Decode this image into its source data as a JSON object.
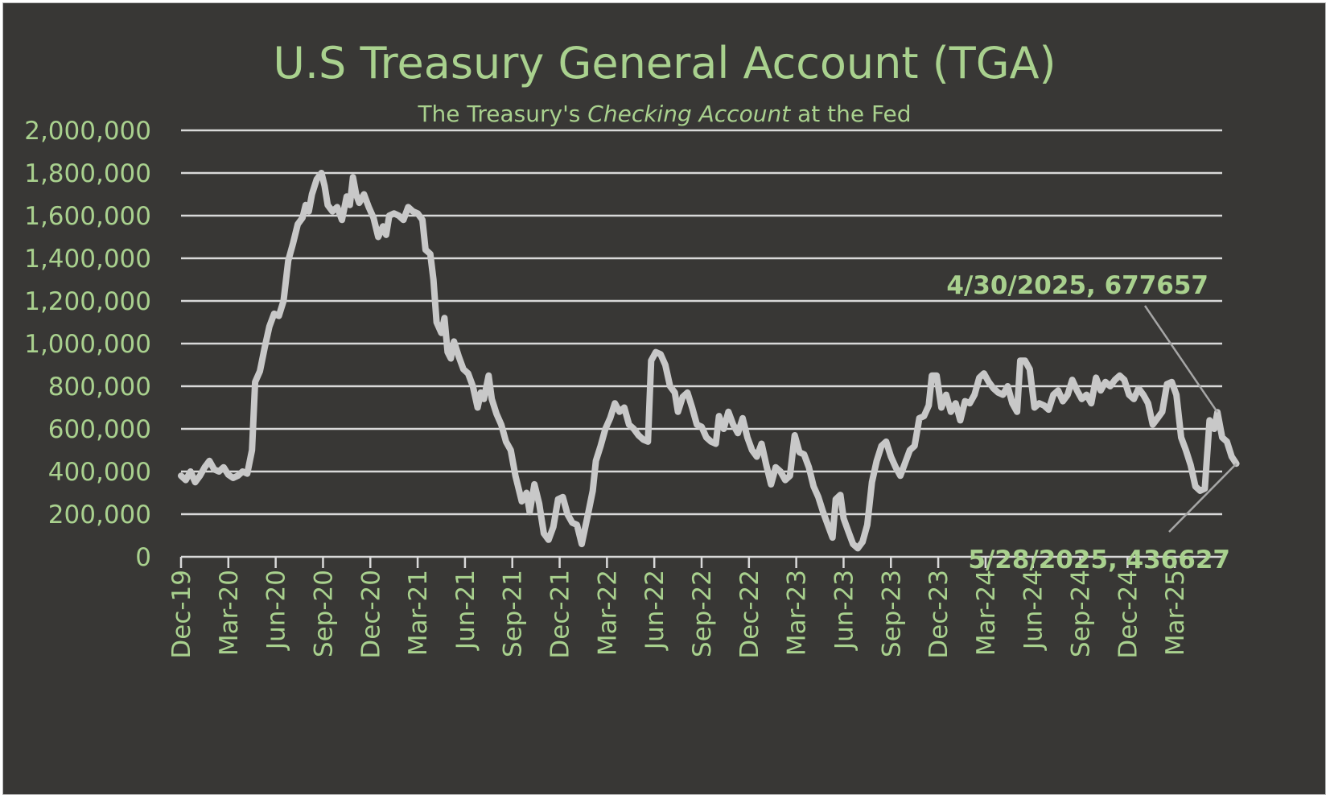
{
  "chart_data": {
    "type": "line",
    "title": "U.S Treasury General Account (TGA)",
    "subtitle_parts": {
      "before": "The Treasury's ",
      "italic": "Checking Account",
      "after": " at the Fed"
    },
    "ylim": [
      0,
      2000000
    ],
    "y_ticks": [
      "0",
      "200,000",
      "400,000",
      "600,000",
      "800,000",
      "1,000,000",
      "1,200,000",
      "1,400,000",
      "1,600,000",
      "1,800,000",
      "2,000,000"
    ],
    "y_tick_values": [
      0,
      200000,
      400000,
      600000,
      800000,
      1000000,
      1200000,
      1400000,
      1600000,
      1800000,
      2000000
    ],
    "x_ticks": [
      "Dec-19",
      "Mar-20",
      "Jun-20",
      "Sep-20",
      "Dec-20",
      "Mar-21",
      "Jun-21",
      "Sep-21",
      "Dec-21",
      "Mar-22",
      "Jun-22",
      "Sep-22",
      "Dec-22",
      "Mar-23",
      "Jun-23",
      "Sep-23",
      "Dec-23",
      "Mar-24",
      "Jun-24",
      "Sep-24",
      "Dec-24",
      "Mar-25"
    ],
    "x_tick_months": [
      0,
      3,
      6,
      9,
      12,
      15,
      18,
      21,
      24,
      27,
      30,
      33,
      36,
      39,
      42,
      45,
      48,
      51,
      54,
      57,
      60,
      63
    ],
    "x_range_months": [
      0,
      66
    ],
    "series": [
      {
        "name": "TGA",
        "points": [
          [
            0.0,
            380000
          ],
          [
            0.3,
            360000
          ],
          [
            0.6,
            400000
          ],
          [
            0.9,
            350000
          ],
          [
            1.2,
            380000
          ],
          [
            1.5,
            420000
          ],
          [
            1.8,
            450000
          ],
          [
            2.1,
            410000
          ],
          [
            2.4,
            400000
          ],
          [
            2.7,
            420000
          ],
          [
            3.0,
            385000
          ],
          [
            3.3,
            370000
          ],
          [
            3.6,
            380000
          ],
          [
            3.9,
            400000
          ],
          [
            4.2,
            390000
          ],
          [
            4.5,
            500000
          ],
          [
            4.7,
            820000
          ],
          [
            5.0,
            870000
          ],
          [
            5.3,
            980000
          ],
          [
            5.6,
            1080000
          ],
          [
            5.9,
            1140000
          ],
          [
            6.2,
            1130000
          ],
          [
            6.5,
            1200000
          ],
          [
            6.8,
            1390000
          ],
          [
            7.1,
            1470000
          ],
          [
            7.4,
            1560000
          ],
          [
            7.7,
            1590000
          ],
          [
            7.9,
            1650000
          ],
          [
            8.1,
            1620000
          ],
          [
            8.3,
            1700000
          ],
          [
            8.6,
            1770000
          ],
          [
            8.9,
            1800000
          ],
          [
            9.1,
            1740000
          ],
          [
            9.3,
            1650000
          ],
          [
            9.6,
            1620000
          ],
          [
            9.9,
            1640000
          ],
          [
            10.2,
            1580000
          ],
          [
            10.5,
            1690000
          ],
          [
            10.7,
            1650000
          ],
          [
            10.9,
            1780000
          ],
          [
            11.1,
            1700000
          ],
          [
            11.3,
            1660000
          ],
          [
            11.6,
            1700000
          ],
          [
            11.9,
            1640000
          ],
          [
            12.2,
            1590000
          ],
          [
            12.5,
            1500000
          ],
          [
            12.8,
            1550000
          ],
          [
            13.0,
            1510000
          ],
          [
            13.2,
            1600000
          ],
          [
            13.5,
            1610000
          ],
          [
            13.8,
            1600000
          ],
          [
            14.1,
            1580000
          ],
          [
            14.4,
            1640000
          ],
          [
            14.7,
            1620000
          ],
          [
            15.0,
            1610000
          ],
          [
            15.3,
            1580000
          ],
          [
            15.5,
            1440000
          ],
          [
            15.8,
            1420000
          ],
          [
            16.0,
            1300000
          ],
          [
            16.2,
            1100000
          ],
          [
            16.5,
            1050000
          ],
          [
            16.7,
            1120000
          ],
          [
            16.9,
            960000
          ],
          [
            17.1,
            930000
          ],
          [
            17.3,
            1010000
          ],
          [
            17.6,
            940000
          ],
          [
            17.9,
            880000
          ],
          [
            18.2,
            860000
          ],
          [
            18.5,
            800000
          ],
          [
            18.8,
            700000
          ],
          [
            19.0,
            770000
          ],
          [
            19.2,
            740000
          ],
          [
            19.5,
            850000
          ],
          [
            19.7,
            740000
          ],
          [
            20.0,
            670000
          ],
          [
            20.3,
            620000
          ],
          [
            20.6,
            540000
          ],
          [
            20.9,
            500000
          ],
          [
            21.2,
            380000
          ],
          [
            21.6,
            260000
          ],
          [
            21.9,
            300000
          ],
          [
            22.1,
            210000
          ],
          [
            22.4,
            340000
          ],
          [
            22.7,
            250000
          ],
          [
            23.0,
            110000
          ],
          [
            23.3,
            80000
          ],
          [
            23.6,
            140000
          ],
          [
            23.9,
            270000
          ],
          [
            24.2,
            280000
          ],
          [
            24.5,
            200000
          ],
          [
            24.8,
            160000
          ],
          [
            25.1,
            150000
          ],
          [
            25.4,
            60000
          ],
          [
            25.8,
            200000
          ],
          [
            26.1,
            310000
          ],
          [
            26.3,
            450000
          ],
          [
            26.6,
            520000
          ],
          [
            26.9,
            600000
          ],
          [
            27.2,
            650000
          ],
          [
            27.5,
            720000
          ],
          [
            27.8,
            680000
          ],
          [
            28.1,
            700000
          ],
          [
            28.4,
            620000
          ],
          [
            28.7,
            600000
          ],
          [
            29.0,
            570000
          ],
          [
            29.3,
            550000
          ],
          [
            29.6,
            540000
          ],
          [
            29.8,
            920000
          ],
          [
            30.1,
            960000
          ],
          [
            30.4,
            950000
          ],
          [
            30.7,
            900000
          ],
          [
            31.0,
            800000
          ],
          [
            31.3,
            770000
          ],
          [
            31.5,
            680000
          ],
          [
            31.8,
            750000
          ],
          [
            32.1,
            770000
          ],
          [
            32.4,
            700000
          ],
          [
            32.7,
            620000
          ],
          [
            33.0,
            610000
          ],
          [
            33.3,
            560000
          ],
          [
            33.6,
            540000
          ],
          [
            33.9,
            530000
          ],
          [
            34.1,
            660000
          ],
          [
            34.4,
            600000
          ],
          [
            34.7,
            680000
          ],
          [
            35.0,
            620000
          ],
          [
            35.3,
            580000
          ],
          [
            35.6,
            650000
          ],
          [
            35.9,
            560000
          ],
          [
            36.2,
            500000
          ],
          [
            36.5,
            470000
          ],
          [
            36.8,
            530000
          ],
          [
            37.1,
            430000
          ],
          [
            37.4,
            340000
          ],
          [
            37.7,
            420000
          ],
          [
            38.0,
            400000
          ],
          [
            38.3,
            360000
          ],
          [
            38.6,
            380000
          ],
          [
            38.9,
            570000
          ],
          [
            39.2,
            490000
          ],
          [
            39.5,
            480000
          ],
          [
            39.8,
            420000
          ],
          [
            40.1,
            330000
          ],
          [
            40.4,
            280000
          ],
          [
            40.7,
            210000
          ],
          [
            41.0,
            150000
          ],
          [
            41.3,
            90000
          ],
          [
            41.5,
            270000
          ],
          [
            41.8,
            290000
          ],
          [
            42.0,
            180000
          ],
          [
            42.3,
            120000
          ],
          [
            42.6,
            60000
          ],
          [
            42.9,
            40000
          ],
          [
            43.2,
            70000
          ],
          [
            43.5,
            150000
          ],
          [
            43.8,
            350000
          ],
          [
            44.1,
            450000
          ],
          [
            44.4,
            520000
          ],
          [
            44.7,
            540000
          ],
          [
            45.0,
            470000
          ],
          [
            45.3,
            420000
          ],
          [
            45.6,
            380000
          ],
          [
            45.9,
            440000
          ],
          [
            46.2,
            500000
          ],
          [
            46.5,
            520000
          ],
          [
            46.8,
            650000
          ],
          [
            47.1,
            660000
          ],
          [
            47.4,
            710000
          ],
          [
            47.6,
            850000
          ],
          [
            47.9,
            850000
          ],
          [
            48.2,
            700000
          ],
          [
            48.5,
            760000
          ],
          [
            48.8,
            680000
          ],
          [
            49.1,
            720000
          ],
          [
            49.4,
            640000
          ],
          [
            49.7,
            730000
          ],
          [
            50.0,
            720000
          ],
          [
            50.3,
            760000
          ],
          [
            50.6,
            840000
          ],
          [
            50.9,
            860000
          ],
          [
            51.2,
            820000
          ],
          [
            51.5,
            790000
          ],
          [
            51.8,
            770000
          ],
          [
            52.1,
            760000
          ],
          [
            52.4,
            800000
          ],
          [
            52.7,
            720000
          ],
          [
            53.0,
            680000
          ],
          [
            53.2,
            920000
          ],
          [
            53.5,
            920000
          ],
          [
            53.8,
            880000
          ],
          [
            54.1,
            700000
          ],
          [
            54.4,
            720000
          ],
          [
            54.7,
            710000
          ],
          [
            55.0,
            690000
          ],
          [
            55.3,
            760000
          ],
          [
            55.6,
            780000
          ],
          [
            55.9,
            730000
          ],
          [
            56.2,
            760000
          ],
          [
            56.5,
            830000
          ],
          [
            56.8,
            780000
          ],
          [
            57.1,
            740000
          ],
          [
            57.4,
            760000
          ],
          [
            57.7,
            720000
          ],
          [
            58.0,
            840000
          ],
          [
            58.3,
            780000
          ],
          [
            58.6,
            820000
          ],
          [
            58.9,
            800000
          ],
          [
            59.2,
            830000
          ],
          [
            59.5,
            850000
          ],
          [
            59.8,
            830000
          ],
          [
            60.1,
            760000
          ],
          [
            60.4,
            740000
          ],
          [
            60.7,
            790000
          ],
          [
            61.0,
            760000
          ],
          [
            61.3,
            720000
          ],
          [
            61.6,
            620000
          ],
          [
            61.9,
            650000
          ],
          [
            62.2,
            680000
          ],
          [
            62.5,
            810000
          ],
          [
            62.8,
            820000
          ],
          [
            63.1,
            760000
          ],
          [
            63.4,
            560000
          ],
          [
            63.7,
            500000
          ],
          [
            64.0,
            430000
          ],
          [
            64.3,
            330000
          ],
          [
            64.6,
            310000
          ],
          [
            64.9,
            320000
          ],
          [
            65.2,
            640000
          ],
          [
            65.5,
            600000
          ],
          [
            65.7,
            678000
          ],
          [
            66.0,
            560000
          ],
          [
            66.3,
            540000
          ],
          [
            66.6,
            470000
          ],
          [
            66.9,
            437000
          ]
        ]
      }
    ],
    "annotations": [
      {
        "label": "4/30/2025, 677657",
        "x_month": 65.7,
        "y": 677657,
        "text_position": "above-left"
      },
      {
        "label": "5/28/2025, 436627",
        "x_month": 66.9,
        "y": 436627,
        "text_position": "below-left"
      }
    ],
    "colors": {
      "background": "#383735",
      "text": "#a9d18e",
      "line": "#c8c8c8",
      "grid": "#d9d9d9"
    }
  }
}
